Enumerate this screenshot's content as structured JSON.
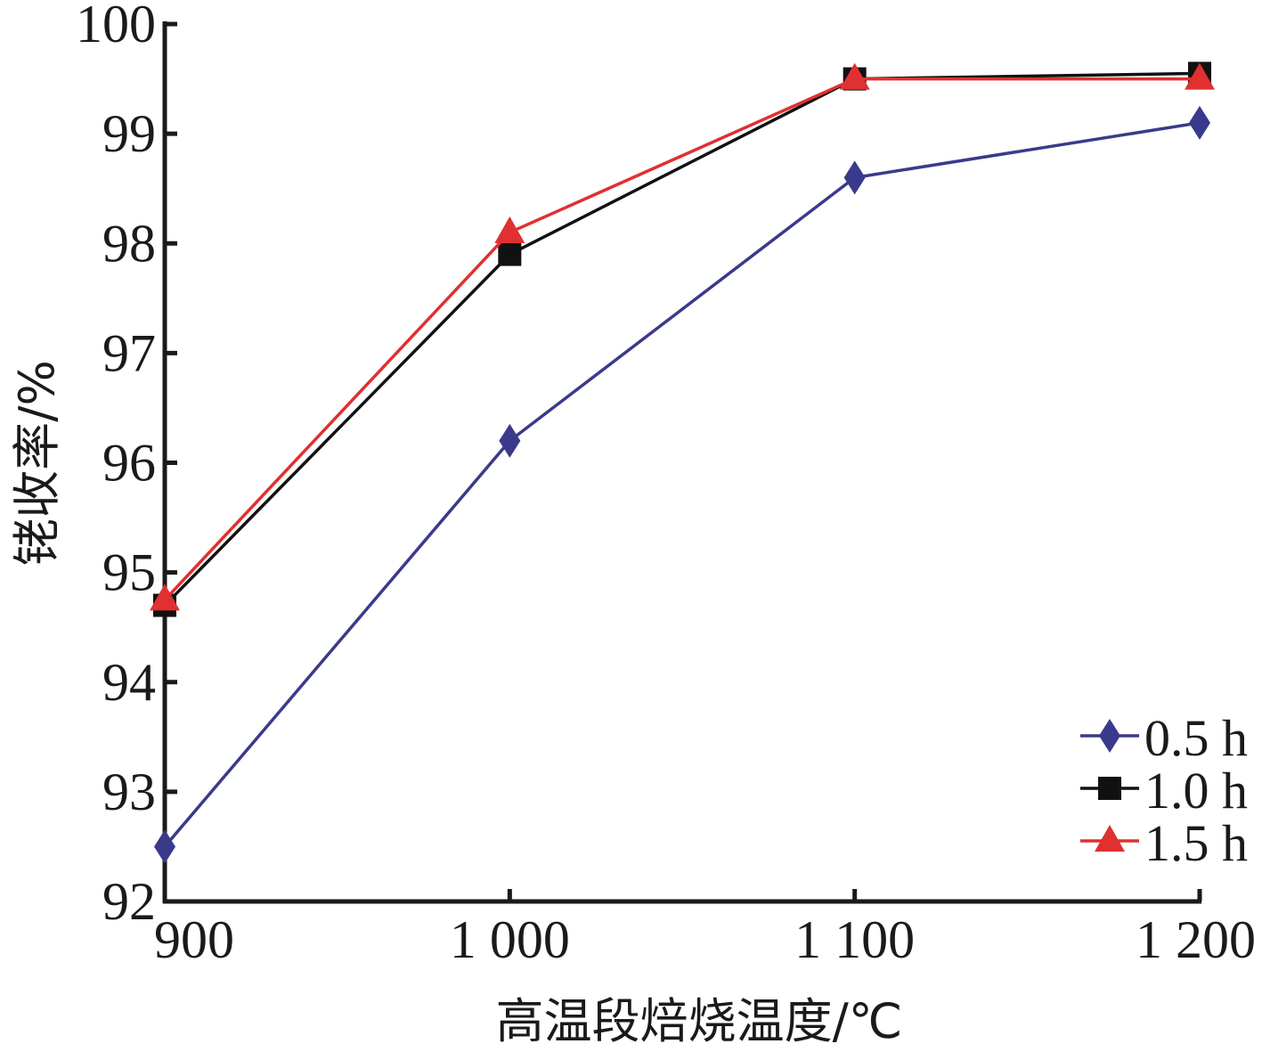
{
  "chart_data": {
    "type": "line",
    "xlabel": "高温段焙烧温度/℃",
    "ylabel": "铑收率/%",
    "x": [
      900,
      1000,
      1100,
      1200
    ],
    "x_tick_labels": [
      "900",
      "1 000",
      "1 100",
      "1 200"
    ],
    "xlim": [
      900,
      1200
    ],
    "ylim": [
      92,
      100
    ],
    "y_ticks": [
      92,
      93,
      94,
      95,
      96,
      97,
      98,
      99,
      100
    ],
    "grid": false,
    "legend_position": "bottom-right",
    "series": [
      {
        "name": "0.5 h",
        "values": [
          92.5,
          96.2,
          98.6,
          99.1
        ],
        "color": "#3a3a8c",
        "marker": "diamond"
      },
      {
        "name": "1.0 h",
        "values": [
          94.7,
          97.9,
          99.5,
          99.55
        ],
        "color": "#111111",
        "marker": "square"
      },
      {
        "name": "1.5 h",
        "values": [
          94.75,
          98.1,
          99.5,
          99.5
        ],
        "color": "#e03030",
        "marker": "triangle"
      }
    ]
  }
}
